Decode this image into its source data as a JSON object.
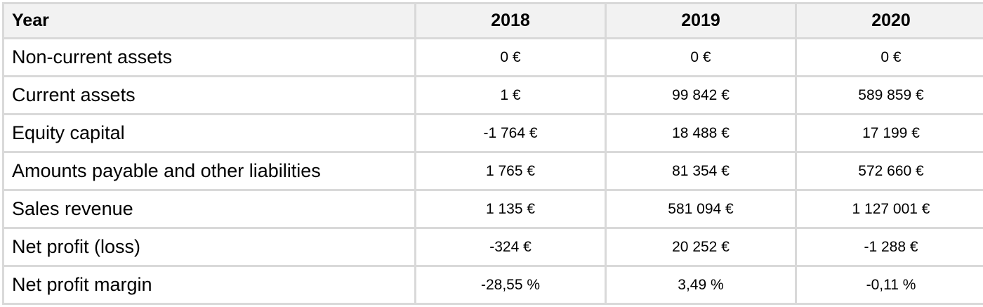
{
  "table": {
    "header": {
      "label": "Year",
      "years": [
        "2018",
        "2019",
        "2020"
      ]
    },
    "rows": [
      {
        "label": "Non-current assets",
        "values": [
          "0 €",
          "0 €",
          "0 €"
        ]
      },
      {
        "label": "Current assets",
        "values": [
          "1 €",
          "99 842 €",
          "589 859 €"
        ]
      },
      {
        "label": "Equity capital",
        "values": [
          "-1 764 €",
          "18 488 €",
          "17 199 €"
        ]
      },
      {
        "label": "Amounts payable and other liabilities",
        "values": [
          "1 765 €",
          "81 354 €",
          "572 660 €"
        ]
      },
      {
        "label": "Sales revenue",
        "values": [
          "1 135 €",
          "581 094 €",
          "1 127 001 €"
        ]
      },
      {
        "label": "Net profit (loss)",
        "values": [
          "-324 €",
          "20 252 €",
          "-1 288 €"
        ]
      },
      {
        "label": "Net profit margin",
        "values": [
          "-28,55 %",
          "3,49 %",
          "-0,11 %"
        ]
      }
    ]
  },
  "colors": {
    "grid": "#d9d9d9",
    "header_bg": "#f2f2f2",
    "cell_bg": "#ffffff",
    "text": "#000000"
  }
}
